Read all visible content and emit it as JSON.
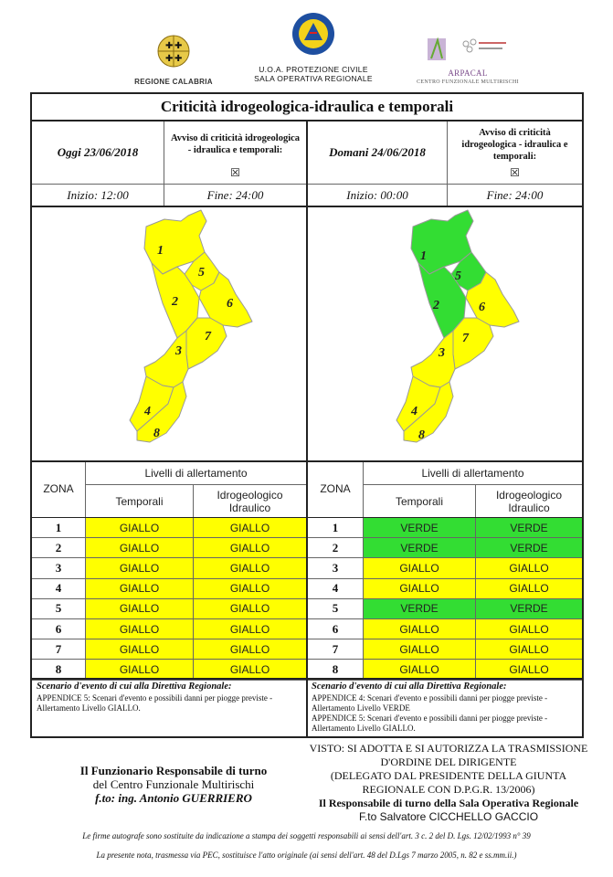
{
  "header": {
    "left_logo_text": "REGIONE CALABRIA",
    "center_logo_badge": "PROTEZIONE CIVILE Regione Calabria",
    "center_line1": "U.O.A. PROTEZIONE CIVILE",
    "center_line2": "SALA OPERATIVA REGIONALE",
    "right_logo_name": "ARPACAL",
    "right_logo_sub": "CENTRO FUNZIONALE MULTIRISCHI"
  },
  "title": "Criticità idrogeologica-idraulica e temporali",
  "today": {
    "date_label": "Oggi 23/06/2018",
    "avviso": "Avviso di criticità idrogeologica - idraulica e temporali:",
    "checkbox": "☒",
    "inizio": "Inizio: 12:00",
    "fine": "Fine: 24:00"
  },
  "tomorrow": {
    "date_label": "Domani 24/06/2018",
    "avviso": "Avviso di criticità idrogeologica - idraulica e temporali:",
    "checkbox": "☒",
    "inizio": "Inizio: 00:00",
    "fine": "Fine: 24:00"
  },
  "colors": {
    "giallo": "#ffff00",
    "verde": "#33dd33",
    "border": "#222222"
  },
  "zone_numbers": [
    "1",
    "2",
    "3",
    "4",
    "5",
    "6",
    "7",
    "8"
  ],
  "table": {
    "zona_label": "ZONA",
    "livelli_label": "Livelli di allertamento",
    "col_temporali": "Temporali",
    "col_idro": "Idrogeologico Idraulico",
    "today_rows": [
      {
        "zona": "1",
        "temporali": "GIALLO",
        "idro": "GIALLO"
      },
      {
        "zona": "2",
        "temporali": "GIALLO",
        "idro": "GIALLO"
      },
      {
        "zona": "3",
        "temporali": "GIALLO",
        "idro": "GIALLO"
      },
      {
        "zona": "4",
        "temporali": "GIALLO",
        "idro": "GIALLO"
      },
      {
        "zona": "5",
        "temporali": "GIALLO",
        "idro": "GIALLO"
      },
      {
        "zona": "6",
        "temporali": "GIALLO",
        "idro": "GIALLO"
      },
      {
        "zona": "7",
        "temporali": "GIALLO",
        "idro": "GIALLO"
      },
      {
        "zona": "8",
        "temporali": "GIALLO",
        "idro": "GIALLO"
      }
    ],
    "tomorrow_rows": [
      {
        "zona": "1",
        "temporali": "VERDE",
        "idro": "VERDE"
      },
      {
        "zona": "2",
        "temporali": "VERDE",
        "idro": "VERDE"
      },
      {
        "zona": "3",
        "temporali": "GIALLO",
        "idro": "GIALLO"
      },
      {
        "zona": "4",
        "temporali": "GIALLO",
        "idro": "GIALLO"
      },
      {
        "zona": "5",
        "temporali": "VERDE",
        "idro": "VERDE"
      },
      {
        "zona": "6",
        "temporali": "GIALLO",
        "idro": "GIALLO"
      },
      {
        "zona": "7",
        "temporali": "GIALLO",
        "idro": "GIALLO"
      },
      {
        "zona": "8",
        "temporali": "GIALLO",
        "idro": "GIALLO"
      }
    ]
  },
  "scenario": {
    "title": "Scenario d'evento di cui alla Direttiva Regionale:",
    "today_text": "APPENDICE 5: Scenari d'evento e possibili danni per piogge previste - Allertamento Livello GIALLO.",
    "tomorrow_text1": "APPENDICE 4: Scenari d'evento e possibili danni per piogge previste - Allertamento Livello VERDE",
    "tomorrow_text2": "APPENDICE 5: Scenari d'evento e possibili danni per piogge previste - Allertamento Livello GIALLO."
  },
  "footer": {
    "left_line1": "Il Funzionario Responsabile di turno",
    "left_line2": "del Centro Funzionale Multirischi",
    "left_line3": "f.to: ing. Antonio GUERRIERO",
    "right_line1": "VISTO: SI ADOTTA E SI AUTORIZZA LA TRASMISSIONE",
    "right_line2": "D'ORDINE DEL DIRIGENTE",
    "right_line3": "(DELEGATO DAL PRESIDENTE DELLA GIUNTA",
    "right_line4": "REGIONALE CON D.P.G.R. 13/2006)",
    "right_line5": "Il Responsabile di turno della Sala Operativa Regionale",
    "right_line6": "F.to Salvatore CICCHELLO GACCIO",
    "note1": "Le firme autografe sono sostituite da indicazione a stampa dei soggetti responsabili ai sensi dell'art. 3 c. 2 del D. Lgs. 12/02/1993 n° 39",
    "note2": "La presente nota, trasmessa via PEC, sostituisce l'atto originale (ai sensi dell'art. 48 del D.Lgs 7 marzo 2005, n. 82 e ss.mm.ii.)"
  }
}
